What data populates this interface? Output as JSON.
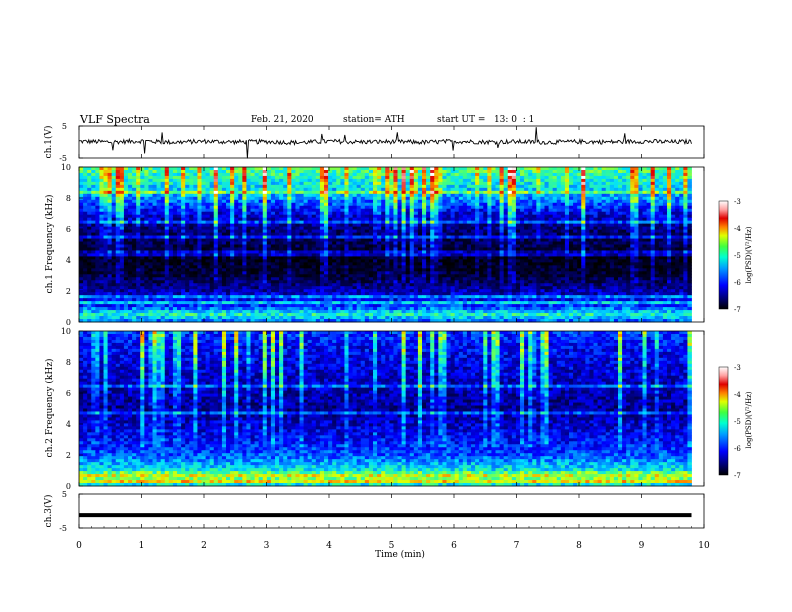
{
  "header": {
    "title": "VLF Spectra",
    "date": "Feb. 21, 2020",
    "station": "station= ATH",
    "start_ut": "start UT =   13: 0  : 1"
  },
  "chart_data": [
    {
      "type": "line",
      "panel": "ch1-waveform",
      "ylabel": "ch.1(V)",
      "ylim": [
        -5,
        5
      ],
      "yticks": [
        "5",
        "-5"
      ],
      "xlim": [
        0,
        10
      ],
      "x": [
        0,
        0.5,
        1,
        1.5,
        2,
        2.5,
        3,
        3.5,
        4,
        4.5,
        5,
        5.5,
        6,
        6.5,
        7,
        7.5,
        8,
        8.5,
        9,
        9.5,
        9.8
      ],
      "values": [
        0.2,
        0.0,
        0.3,
        -0.1,
        0.2,
        0.0,
        0.1,
        -0.2,
        0.2,
        0.0,
        0.1,
        -0.1,
        0.2,
        0.0,
        0.1,
        -0.1,
        0.1,
        0.0,
        0.2,
        0.0,
        0.1
      ],
      "color": "#000000"
    },
    {
      "type": "heatmap",
      "panel": "ch1-spectrogram",
      "ylabel": "ch.1 Frequency (kHz)",
      "ylim": [
        0,
        10
      ],
      "yticks": [
        "0",
        "2",
        "4",
        "6",
        "8",
        "10"
      ],
      "xlim": [
        0,
        10
      ],
      "data_end_min": 9.8,
      "colorbar": {
        "label": "log(PSD)(V²/Hz)",
        "range": [
          -7,
          -3
        ],
        "ticks": [
          "-3",
          "-4",
          "-5",
          "-6",
          "-7"
        ]
      },
      "band_profile_khz": [
        {
          "f": 10,
          "level": -4.6
        },
        {
          "f": 9,
          "level": -4.9
        },
        {
          "f": 8,
          "level": -5.3
        },
        {
          "f": 7,
          "level": -5.9
        },
        {
          "f": 6,
          "level": -6.3
        },
        {
          "f": 5,
          "level": -6.5
        },
        {
          "f": 4,
          "level": -6.8
        },
        {
          "f": 3,
          "level": -6.6
        },
        {
          "f": 2,
          "level": -6.1
        },
        {
          "f": 1,
          "level": -5.6
        },
        {
          "f": 0.5,
          "level": -4.8
        },
        {
          "f": 0,
          "level": -5.5
        }
      ]
    },
    {
      "type": "heatmap",
      "panel": "ch2-spectrogram",
      "ylabel": "ch.2 Frequency (kHz)",
      "ylim": [
        0,
        10
      ],
      "yticks": [
        "0",
        "2",
        "4",
        "6",
        "8",
        "10"
      ],
      "xlim": [
        0,
        10
      ],
      "data_end_min": 9.8,
      "colorbar": {
        "label": "log(PSD)(V²/Hz)",
        "range": [
          -7,
          -3
        ],
        "ticks": [
          "-3",
          "-4",
          "-5",
          "-6",
          "-7"
        ]
      },
      "band_profile_khz": [
        {
          "f": 10,
          "level": -5.6
        },
        {
          "f": 9,
          "level": -5.8
        },
        {
          "f": 8,
          "level": -5.9
        },
        {
          "f": 7,
          "level": -6.0
        },
        {
          "f": 6,
          "level": -6.1
        },
        {
          "f": 5,
          "level": -6.2
        },
        {
          "f": 4,
          "level": -6.0
        },
        {
          "f": 3,
          "level": -5.8
        },
        {
          "f": 2,
          "level": -5.5
        },
        {
          "f": 1,
          "level": -4.9
        },
        {
          "f": 0.7,
          "level": -4.2
        },
        {
          "f": 0,
          "level": -5.0
        }
      ]
    },
    {
      "type": "line",
      "panel": "ch3-waveform",
      "ylabel": "ch.3(V)",
      "ylim": [
        -5,
        5
      ],
      "yticks": [
        "5",
        "-5"
      ],
      "xlim": [
        0,
        10
      ],
      "x": [
        0,
        9.8
      ],
      "values": [
        -1.2,
        -1.2
      ],
      "color": "#000000"
    }
  ],
  "xaxis": {
    "label": "Time (min)",
    "ticks": [
      "0",
      "1",
      "2",
      "3",
      "4",
      "5",
      "6",
      "7",
      "8",
      "9",
      "10"
    ]
  },
  "colors": {
    "colormap": [
      "#000000",
      "#000030",
      "#00008f",
      "#0000ff",
      "#0070ff",
      "#00e0ff",
      "#40ff80",
      "#e0ff00",
      "#ff8000",
      "#e00000",
      "#ffffff"
    ],
    "line": "#000000"
  }
}
